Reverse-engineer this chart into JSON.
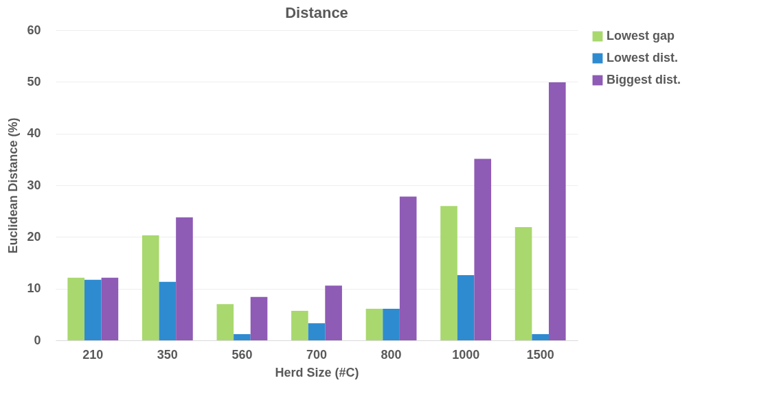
{
  "chart_data": {
    "type": "bar",
    "title": "Distance",
    "xlabel": "Herd Size (#C)",
    "ylabel": "Euclidean Distance (%)",
    "categories": [
      "210",
      "350",
      "560",
      "700",
      "800",
      "1000",
      "1500"
    ],
    "series": [
      {
        "name": "Lowest gap",
        "color": "#a9d86e",
        "values": [
          12.1,
          20.3,
          7.0,
          5.7,
          6.1,
          26.0,
          21.9
        ]
      },
      {
        "name": "Lowest dist.",
        "color": "#2e8bd0",
        "values": [
          11.7,
          11.3,
          1.2,
          3.3,
          6.1,
          12.6,
          1.2
        ]
      },
      {
        "name": "Biggest dist.",
        "color": "#8e5bb5",
        "values": [
          12.1,
          23.8,
          8.4,
          10.6,
          27.8,
          35.1,
          49.9
        ]
      }
    ],
    "ylim": [
      0,
      60
    ],
    "yticks": [
      0,
      10,
      20,
      30,
      40,
      50,
      60
    ],
    "grid": "y",
    "legend": "right"
  }
}
